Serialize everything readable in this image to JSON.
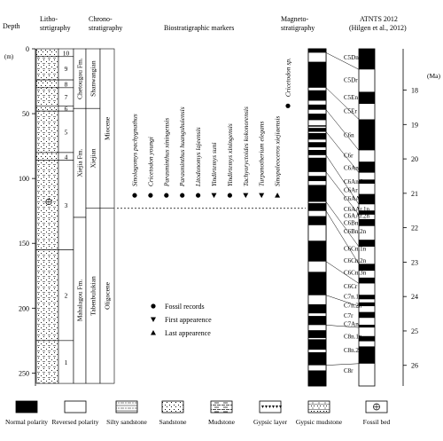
{
  "headers": {
    "depth": "Depth",
    "litho": [
      "Litho-",
      "strtigraphy"
    ],
    "chrono": [
      "Chrono-",
      "stratigraphy"
    ],
    "bio": "Biostratigraphic markers",
    "magneto": [
      "Magneto-",
      "stratigraphy"
    ],
    "atnts": [
      "ATNTS 2012",
      "(Hilgen et al., 2012)"
    ]
  },
  "depth_axis": {
    "unit": "(m)",
    "max": 260,
    "ticks": [
      {
        "value": 0,
        "label": "0"
      },
      {
        "value": 50,
        "label": "50"
      },
      {
        "value": 100,
        "label": "100"
      },
      {
        "value": 150,
        "label": "150"
      },
      {
        "value": 200,
        "label": "200"
      },
      {
        "value": 250,
        "label": "250"
      }
    ]
  },
  "age_axis": {
    "unit": "(Ma)",
    "top": 16.8,
    "bottom": 26.6,
    "ticks": [
      {
        "value": 18,
        "label": "18"
      },
      {
        "value": 19,
        "label": "19"
      },
      {
        "value": 20,
        "label": "20"
      },
      {
        "value": 21,
        "label": "21"
      },
      {
        "value": 22,
        "label": "22"
      },
      {
        "value": 23,
        "label": "23"
      },
      {
        "value": 24,
        "label": "24"
      },
      {
        "value": 25,
        "label": "25"
      },
      {
        "value": 26,
        "label": "26"
      }
    ]
  },
  "layers": [
    {
      "label": "10",
      "top": 0,
      "bottom": 6,
      "pattern": "sandstone"
    },
    {
      "label": "9",
      "top": 6,
      "bottom": 24,
      "pattern": "gypsic"
    },
    {
      "label": "8",
      "top": 24,
      "bottom": 30,
      "pattern": "sandstone"
    },
    {
      "label": "7",
      "top": 30,
      "bottom": 44,
      "pattern": "gypsic"
    },
    {
      "label": "6",
      "top": 44,
      "bottom": 48,
      "pattern": "sandstone"
    },
    {
      "label": "5",
      "top": 48,
      "bottom": 80,
      "pattern": "gypsic"
    },
    {
      "label": "4",
      "top": 80,
      "bottom": 86,
      "pattern": "sandstone"
    },
    {
      "label": "3",
      "top": 86,
      "bottom": 155,
      "pattern": "gypsic"
    },
    {
      "label": "2",
      "top": 155,
      "bottom": 225,
      "pattern": "gypsic"
    },
    {
      "label": "1",
      "top": 225,
      "bottom": 258,
      "pattern": "gypsic"
    }
  ],
  "formations": [
    {
      "label": "Chetougou Fm.",
      "top": 0,
      "bottom": 46
    },
    {
      "label": "Xiejia Fm.",
      "top": 46,
      "bottom": 130
    },
    {
      "label": "Mahalagou Fm.",
      "top": 130,
      "bottom": 258
    }
  ],
  "chrono_stages": [
    {
      "label": "Shanwangian",
      "top": 0,
      "bottom": 46
    },
    {
      "label": "Xiejian",
      "top": 46,
      "bottom": 123
    },
    {
      "label": "Tabenbulukian",
      "top": 123,
      "bottom": 258
    }
  ],
  "chrono_epochs": [
    {
      "label": "Miocene",
      "top": 0,
      "bottom": 123
    },
    {
      "label": "Oligocene",
      "top": 123,
      "bottom": 258
    }
  ],
  "fossil_bed_depth": 118,
  "boundary_depth": 123,
  "markers": [
    {
      "name": "Sinolagomys pachygnathus",
      "symbol": "circle"
    },
    {
      "name": "Cricetodon youngi",
      "symbol": "circle"
    },
    {
      "name": "Parasminthus xiningensis",
      "symbol": "circle"
    },
    {
      "name": "Parasminthus huangshuiensis",
      "symbol": "circle"
    },
    {
      "name": "Litodonomys lajeensis",
      "symbol": "circle"
    },
    {
      "name": "Yindirtemys suni",
      "symbol": "triangle-down"
    },
    {
      "name": "Yindirtemys xiningensis",
      "symbol": "circle"
    },
    {
      "name": "Tachyoryctoides kokonorensis",
      "symbol": "triangle-down"
    },
    {
      "name": "Turpanotherium elegans",
      "symbol": "triangle-down"
    },
    {
      "name": "Sinopaleoceros xiejiaensis",
      "symbol": "triangle-up"
    }
  ],
  "marker_depth": 113,
  "cricetodon_marker": {
    "name": "Cricetodon sp.",
    "symbol": "circle",
    "depth": 44
  },
  "legend_symbols": [
    {
      "symbol": "circle",
      "label": "Fossil records"
    },
    {
      "symbol": "triangle-down",
      "label": "First appearence"
    },
    {
      "symbol": "triangle-up",
      "label": "Last appearence"
    }
  ],
  "magneto_reversed_intervals": [
    [
      3,
      10
    ],
    [
      30,
      32
    ],
    [
      40,
      43
    ],
    [
      47,
      50
    ],
    [
      55,
      59
    ],
    [
      60,
      61
    ],
    [
      64,
      65
    ],
    [
      70,
      72
    ],
    [
      76,
      78
    ],
    [
      82,
      84
    ],
    [
      95,
      98
    ],
    [
      102,
      105
    ],
    [
      118,
      119
    ],
    [
      125,
      129
    ],
    [
      136,
      148
    ],
    [
      164,
      172
    ],
    [
      190,
      197
    ],
    [
      204,
      206
    ],
    [
      213,
      217
    ],
    [
      223,
      224
    ],
    [
      232,
      234
    ],
    [
      244,
      248
    ]
  ],
  "atnts_normal_intervals": [
    [
      16.8,
      17.4
    ],
    [
      18.05,
      18.4
    ],
    [
      18.85,
      19.75
    ],
    [
      20.08,
      20.4
    ],
    [
      20.6,
      20.72
    ],
    [
      21.02,
      21.32
    ],
    [
      21.5,
      21.62
    ],
    [
      21.75,
      21.95
    ],
    [
      22.35,
      22.55
    ],
    [
      23.05,
      23.25
    ],
    [
      23.45,
      23.62
    ],
    [
      23.95,
      24.08
    ],
    [
      24.17,
      24.28
    ],
    [
      24.45,
      24.62
    ],
    [
      24.82,
      24.9
    ],
    [
      25.15,
      25.3
    ],
    [
      25.45,
      25.95
    ]
  ],
  "chrons": [
    {
      "label": "C5Dn",
      "age": 17.05
    },
    {
      "label": "C5Dr",
      "age": 17.7
    },
    {
      "label": "C5En",
      "age": 18.2
    },
    {
      "label": "C5Er",
      "age": 18.6
    },
    {
      "label": "C6n",
      "age": 19.3
    },
    {
      "label": "C6r",
      "age": 19.9
    },
    {
      "label": "C6An.1n",
      "age": 20.25
    },
    {
      "label": "C6An.2n",
      "age": 20.65
    },
    {
      "label": "C6Ar",
      "age": 20.9
    },
    {
      "label": "C6AAn",
      "age": 21.15
    },
    {
      "label": "C6AAr.1n",
      "age": 21.45
    },
    {
      "label": "C6AAr.2n",
      "age": 21.65
    },
    {
      "label": "C6Bn.1n",
      "age": 21.85
    },
    {
      "label": "C6Bn.2n",
      "age": 22.1
    },
    {
      "label": "C6Cn.1n",
      "age": 22.6
    },
    {
      "label": "C6Cn.2n",
      "age": 22.95
    },
    {
      "label": "C6Cn.3n",
      "age": 23.3
    },
    {
      "label": "C6Cr",
      "age": 23.7
    },
    {
      "label": "C7n.1n",
      "age": 24.0
    },
    {
      "label": "C7n.2n",
      "age": 24.25
    },
    {
      "label": "C7r",
      "age": 24.55
    },
    {
      "label": "C7An",
      "age": 24.8
    },
    {
      "label": "C8n.1n",
      "age": 25.15
    },
    {
      "label": "C8n.2n",
      "age": 25.55
    },
    {
      "label": "C8r",
      "age": 26.15
    }
  ],
  "legend": [
    {
      "pattern": "normal",
      "label": "Normal polarity"
    },
    {
      "pattern": "reversed",
      "label": "Reversed polarity"
    },
    {
      "pattern": "silty-sandstone",
      "label": "Silty sandstone"
    },
    {
      "pattern": "sandstone",
      "label": "Sandstone"
    },
    {
      "pattern": "mudstone",
      "label": "Mudstone"
    },
    {
      "pattern": "gypsic-layer",
      "label": "Gypsic layer"
    },
    {
      "pattern": "gypsic-mudstone",
      "label": "Gypsic mudstone"
    },
    {
      "pattern": "fossil-bed",
      "label": "Fossil bed"
    }
  ]
}
